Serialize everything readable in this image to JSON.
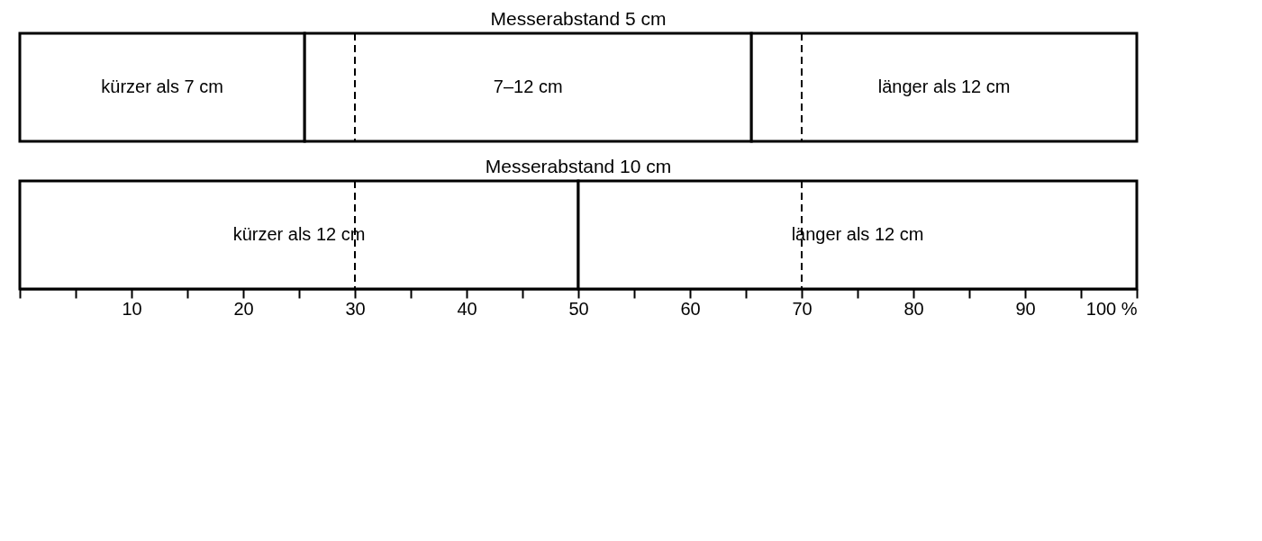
{
  "chart_data": [
    {
      "type": "bar",
      "orientation": "horizontal",
      "stacked": true,
      "title": "Messerabstand 5 cm",
      "categories": [
        null
      ],
      "series": [
        {
          "name": "kürzer als 7 cm",
          "color": "#ffffff",
          "values": [
            25.5
          ]
        },
        {
          "name": "7–12 cm",
          "color": "#ffffff",
          "values": [
            40
          ]
        },
        {
          "name": "länger als 12 cm",
          "color": "#ffffff",
          "values": [
            34.5
          ]
        }
      ],
      "xlim": [
        0,
        100
      ],
      "tick_labels": false,
      "ref_lines": [
        {
          "axis": "x",
          "value": 30,
          "line_style": "dashed"
        },
        {
          "axis": "x",
          "value": 70,
          "line_style": "dashed"
        }
      ]
    },
    {
      "type": "bar",
      "orientation": "horizontal",
      "stacked": true,
      "title": "Messerabstand 10 cm",
      "categories": [
        null
      ],
      "series": [
        {
          "name": "kürzer als 12 cm",
          "color": "#ffffff",
          "values": [
            50
          ]
        },
        {
          "name": "länger als 12 cm",
          "color": "#ffffff",
          "values": [
            50
          ]
        }
      ],
      "xlim": [
        0,
        100
      ],
      "xticks": [
        {
          "value": 0,
          "label": null
        },
        {
          "value": 5,
          "label": null
        },
        10,
        {
          "value": 15,
          "label": null
        },
        20,
        {
          "value": 25,
          "label": null
        },
        30,
        {
          "value": 35,
          "label": null
        },
        40,
        {
          "value": 45,
          "label": null
        },
        50,
        {
          "value": 55,
          "label": null
        },
        60,
        {
          "value": 65,
          "label": null
        },
        70,
        {
          "value": 75,
          "label": null
        },
        80,
        {
          "value": 85,
          "label": null
        },
        90,
        {
          "value": 95,
          "label": null
        },
        {
          "value": 100,
          "label": "100 %"
        }
      ],
      "tick_labels": "x",
      "ref_lines": [
        {
          "axis": "x",
          "value": 30,
          "line_style": "dashed"
        },
        {
          "axis": "x",
          "value": 70,
          "line_style": "dashed"
        }
      ]
    }
  ]
}
